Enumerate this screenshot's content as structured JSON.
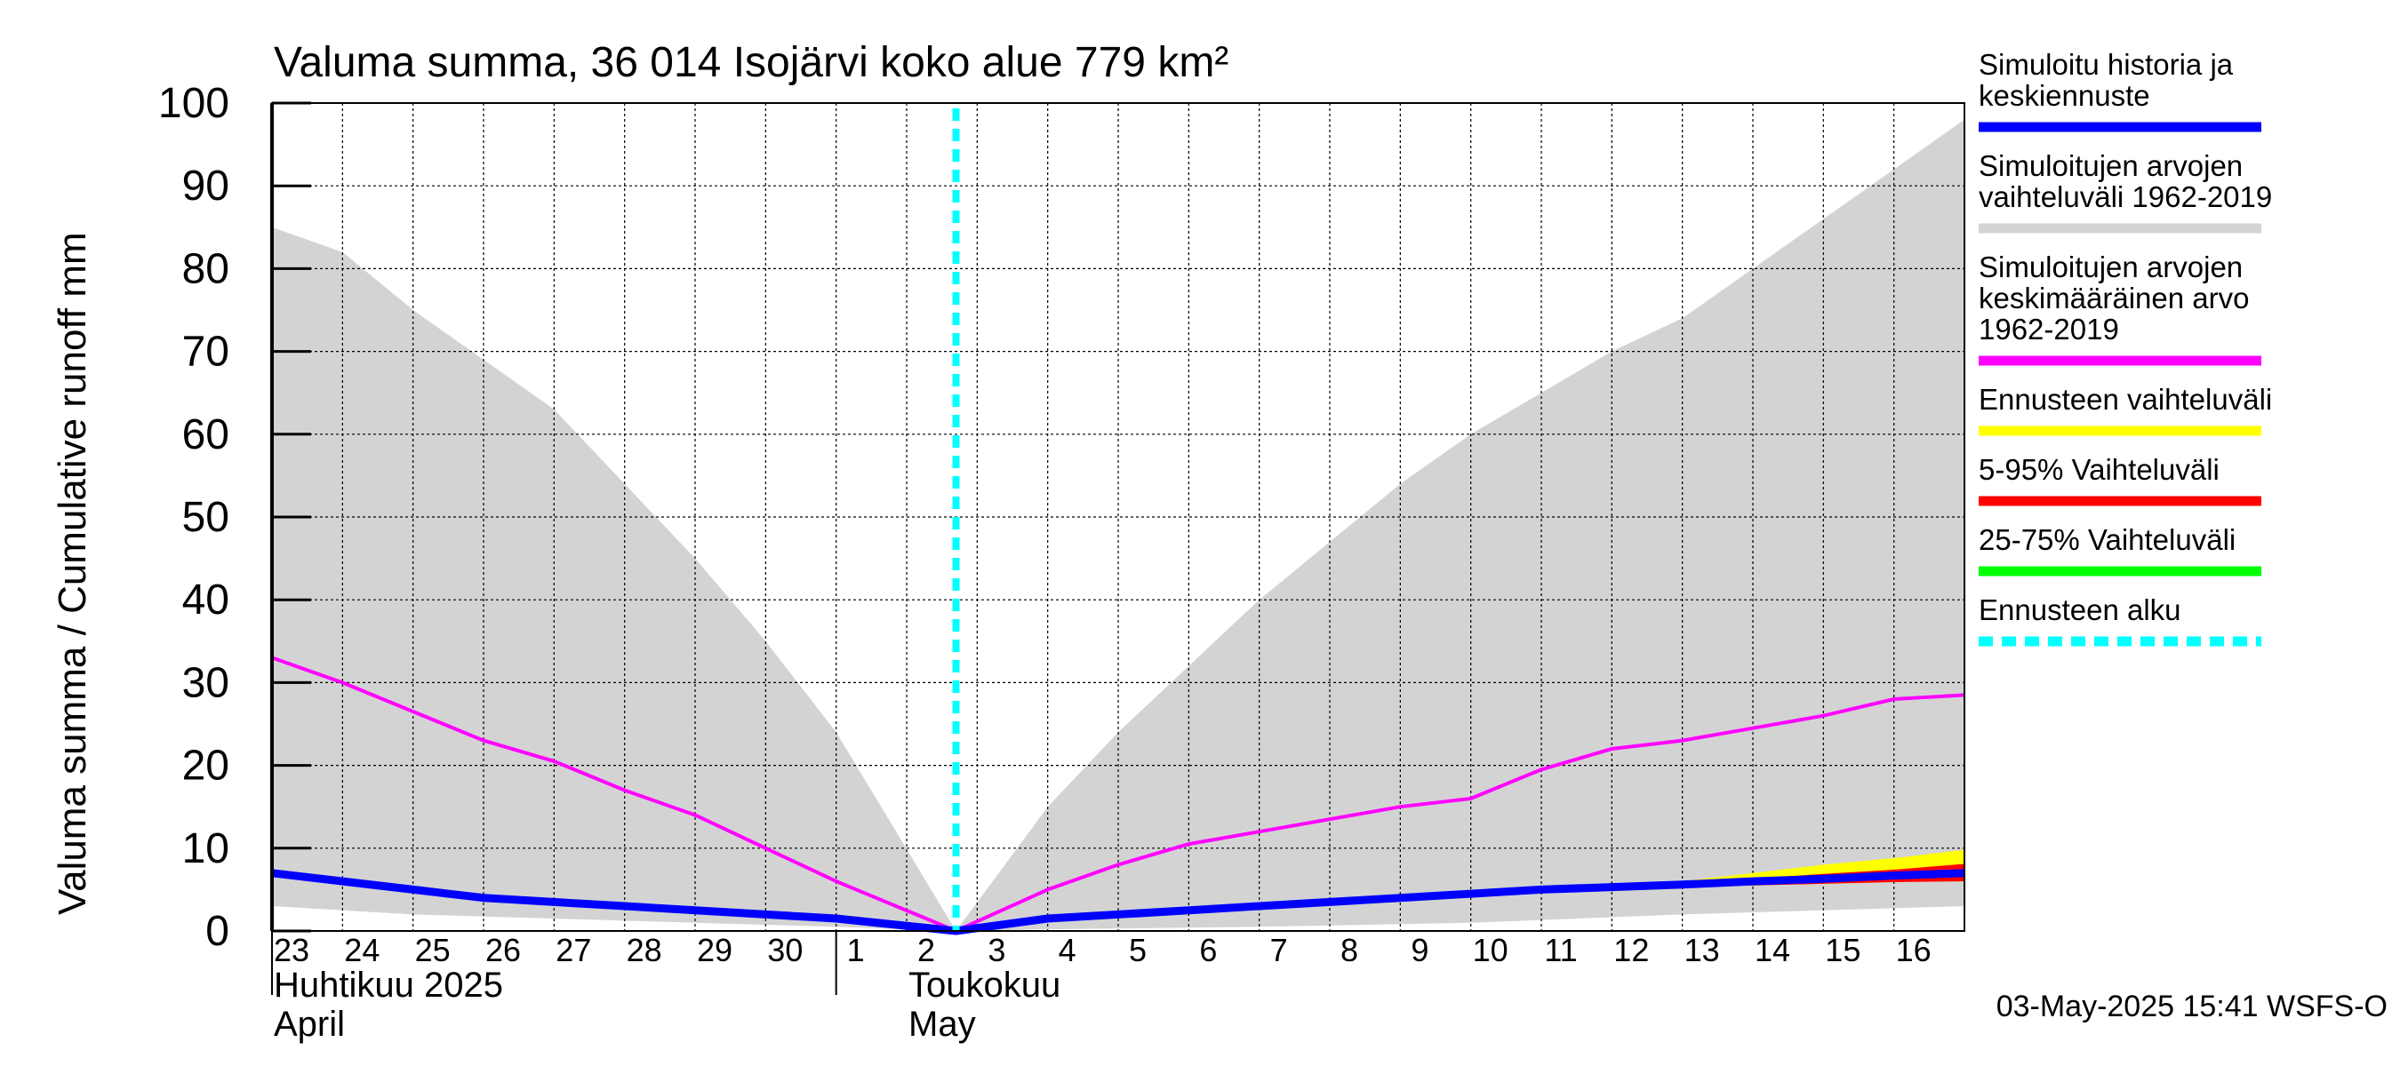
{
  "chart_data": {
    "type": "line",
    "title": "Valuma summa, 36 014 Isojärvi koko alue 779 km²",
    "ylabel": "Valuma summa / Cumulative runoff    mm",
    "ylim": [
      0,
      100
    ],
    "yticks": [
      0,
      10,
      20,
      30,
      40,
      50,
      60,
      70,
      80,
      90,
      100
    ],
    "x_day_labels": [
      "23",
      "24",
      "25",
      "26",
      "27",
      "28",
      "29",
      "30",
      "1",
      "2",
      "3",
      "4",
      "5",
      "6",
      "7",
      "8",
      "9",
      "10",
      "11",
      "12",
      "13",
      "14",
      "15",
      "16"
    ],
    "x_month_labels": [
      {
        "fi": "Huhtikuu  2025",
        "en": "April"
      },
      {
        "fi": "Toukokuu",
        "en": "May"
      }
    ],
    "forecast_start_label": "3",
    "timestamp": "03-May-2025 15:41 WSFS-O",
    "legend": [
      {
        "key": "sim_history",
        "label_lines": [
          "Simuloitu historia ja",
          "keskiennuste"
        ],
        "color": "#0000ff",
        "style": "solid"
      },
      {
        "key": "sim_range",
        "label_lines": [
          "Simuloitujen arvojen",
          "vaihteluväli 1962-2019"
        ],
        "color": "#d3d3d3",
        "style": "solid"
      },
      {
        "key": "sim_mean",
        "label_lines": [
          "Simuloitujen arvojen",
          "keskimääräinen arvo",
          "   1962-2019"
        ],
        "color": "#ff00ff",
        "style": "solid"
      },
      {
        "key": "forecast_range",
        "label_lines": [
          "Ennusteen vaihteluväli"
        ],
        "color": "#ffff00",
        "style": "solid"
      },
      {
        "key": "p5_95",
        "label_lines": [
          "5-95% Vaihteluväli"
        ],
        "color": "#ff0000",
        "style": "solid"
      },
      {
        "key": "p25_75",
        "label_lines": [
          "25-75% Vaihteluväli"
        ],
        "color": "#00ff00",
        "style": "solid"
      },
      {
        "key": "forecast_start",
        "label_lines": [
          "Ennusteen alku"
        ],
        "color": "#00ffff",
        "style": "dashed"
      }
    ],
    "series": {
      "range_upper": {
        "x": [
          0,
          1,
          2,
          3,
          4,
          5,
          6,
          7,
          8,
          9.7,
          11,
          12,
          13,
          14,
          15,
          16,
          17,
          18,
          19,
          20,
          21,
          22,
          23,
          24
        ],
        "y": [
          85,
          82,
          75,
          69,
          63,
          54,
          45,
          35,
          24,
          0,
          15,
          24,
          32,
          40,
          47,
          54,
          60,
          65,
          70,
          74,
          80,
          86,
          92,
          98
        ]
      },
      "range_lower": {
        "x": [
          0,
          2,
          4,
          6,
          8,
          9.7,
          11,
          14,
          17,
          20,
          24
        ],
        "y": [
          3,
          2,
          1.5,
          1,
          0.5,
          0,
          0.2,
          0.5,
          1,
          2,
          3
        ]
      },
      "mean": {
        "x": [
          0,
          1,
          2,
          3,
          4,
          5,
          6,
          7,
          8,
          9.7,
          11,
          12,
          13,
          14,
          15,
          16,
          17,
          18,
          19,
          20,
          21,
          22,
          23,
          24
        ],
        "y": [
          33,
          30,
          26.5,
          23,
          20.5,
          17,
          14,
          10,
          6,
          0,
          5,
          8,
          10.5,
          12,
          13.5,
          15,
          16,
          19.5,
          22,
          23,
          24.5,
          26,
          28,
          28.5
        ]
      },
      "sim_history": {
        "x": [
          0,
          1,
          2,
          3,
          4,
          5,
          6,
          7,
          8,
          9.7,
          11,
          12,
          13,
          14,
          15,
          16,
          17,
          18,
          19,
          20,
          21,
          22,
          23,
          24
        ],
        "y": [
          7,
          6,
          5,
          4,
          3.5,
          3,
          2.5,
          2,
          1.5,
          0,
          1.5,
          2,
          2.5,
          3,
          3.5,
          4,
          4.5,
          5,
          5.3,
          5.6,
          6,
          6.3,
          6.7,
          7
        ]
      },
      "forecast_range_upper": {
        "x": [
          19.5,
          20,
          21,
          22,
          23,
          24
        ],
        "y": [
          5.5,
          6,
          7,
          8,
          8.8,
          9.8
        ]
      },
      "p5_95_upper": {
        "x": [
          19.5,
          20,
          21,
          22,
          23,
          24
        ],
        "y": [
          5.5,
          5.8,
          6.3,
          6.9,
          7.4,
          8.1
        ]
      },
      "p5_95_lower": {
        "x": [
          19.5,
          20,
          21,
          22,
          23,
          24
        ],
        "y": [
          5.2,
          5.3,
          5.5,
          5.7,
          5.9,
          6
        ]
      },
      "p25_75_upper": {
        "x": [
          19.5,
          20,
          21,
          22,
          23,
          24
        ],
        "y": [
          5.4,
          5.6,
          6,
          6.4,
          6.8,
          7.2
        ]
      },
      "p25_75_lower": {
        "x": [
          19.5,
          20,
          21,
          22,
          23,
          24
        ],
        "y": [
          5.3,
          5.4,
          5.7,
          6,
          6.3,
          6.6
        ]
      }
    },
    "forecast_start_x": 9.7,
    "grid": true
  }
}
